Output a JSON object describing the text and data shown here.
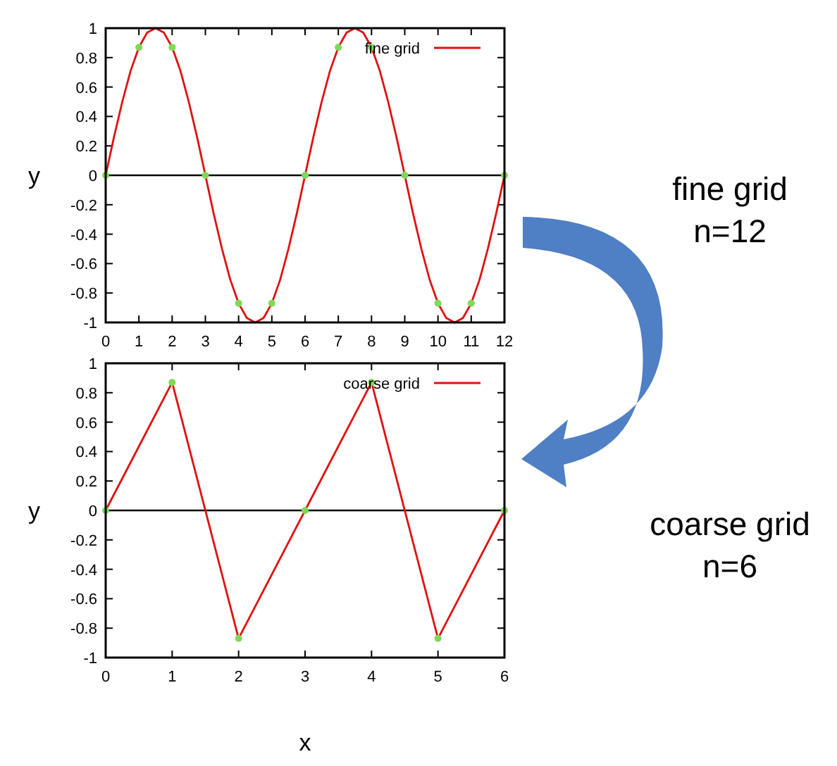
{
  "chart_data": [
    {
      "type": "line",
      "ylabel": "y",
      "xlim": [
        0,
        12
      ],
      "ylim": [
        -1,
        1
      ],
      "xticks": [
        0,
        1,
        2,
        3,
        4,
        5,
        6,
        7,
        8,
        9,
        10,
        11,
        12
      ],
      "yticks": [
        -1,
        -0.8,
        -0.6,
        -0.4,
        -0.2,
        0,
        0.2,
        0.4,
        0.6,
        0.8,
        1
      ],
      "legend": "top right",
      "line_style": "solid",
      "x": [
        0,
        0.25,
        0.5,
        0.75,
        1,
        1.25,
        1.5,
        1.75,
        2,
        2.25,
        2.5,
        2.75,
        3,
        3.25,
        3.5,
        3.75,
        4,
        4.25,
        4.5,
        4.75,
        5,
        5.25,
        5.5,
        5.75,
        6,
        6.25,
        6.5,
        6.75,
        7,
        7.25,
        7.5,
        7.75,
        8,
        8.25,
        8.5,
        8.75,
        9,
        9.25,
        9.5,
        9.75,
        10,
        10.25,
        10.5,
        10.75,
        11,
        11.25,
        11.5,
        11.75,
        12
      ],
      "series": [
        {
          "name": "fine grid",
          "color": "#e01010",
          "values": [
            0,
            0.26,
            0.5,
            0.71,
            0.87,
            0.97,
            1,
            0.97,
            0.87,
            0.71,
            0.5,
            0.26,
            0,
            -0.26,
            -0.5,
            -0.71,
            -0.87,
            -0.97,
            -1,
            -0.97,
            -0.87,
            -0.71,
            -0.5,
            -0.26,
            0,
            0.26,
            0.5,
            0.71,
            0.87,
            0.97,
            1,
            0.97,
            0.87,
            0.71,
            0.5,
            0.26,
            0,
            -0.26,
            -0.5,
            -0.71,
            -0.87,
            -0.97,
            -1,
            -0.97,
            -0.87,
            -0.71,
            -0.5,
            -0.26,
            0
          ]
        },
        {
          "type": "scatter",
          "color": "#7ed957",
          "marker": "circle",
          "x": [
            0,
            1,
            2,
            3,
            4,
            5,
            6,
            7,
            8,
            9,
            10,
            11,
            12
          ],
          "values": [
            0,
            0.87,
            0.87,
            0,
            -0.87,
            -0.87,
            0,
            0.87,
            0.87,
            0,
            -0.87,
            -0.87,
            0
          ]
        }
      ],
      "ref_lines": [
        {
          "axis": "y",
          "value": 0,
          "color": "#000000"
        }
      ],
      "annotations": [
        "fine grid\nn=12"
      ]
    },
    {
      "type": "line",
      "xlabel": "x",
      "ylabel": "y",
      "xlim": [
        0,
        6
      ],
      "ylim": [
        -1,
        1
      ],
      "xticks": [
        0,
        1,
        2,
        3,
        4,
        5,
        6
      ],
      "yticks": [
        -1,
        -0.8,
        -0.6,
        -0.4,
        -0.2,
        0,
        0.2,
        0.4,
        0.6,
        0.8,
        1
      ],
      "legend": "top right",
      "line_style": "solid",
      "x": [
        0,
        1,
        2,
        3,
        4,
        5,
        6
      ],
      "series": [
        {
          "name": "coarse grid",
          "color": "#e01010",
          "values": [
            0,
            0.87,
            -0.87,
            0,
            0.87,
            -0.87,
            0
          ]
        },
        {
          "type": "scatter",
          "color": "#7ed957",
          "marker": "circle",
          "x": [
            0,
            1,
            2,
            3,
            4,
            5,
            6
          ],
          "values": [
            0,
            0.87,
            -0.87,
            0,
            0.87,
            -0.87,
            0
          ]
        }
      ],
      "ref_lines": [
        {
          "axis": "y",
          "value": 0,
          "color": "#000000"
        }
      ],
      "annotations": [
        "coarse grid\nn=6"
      ]
    }
  ]
}
